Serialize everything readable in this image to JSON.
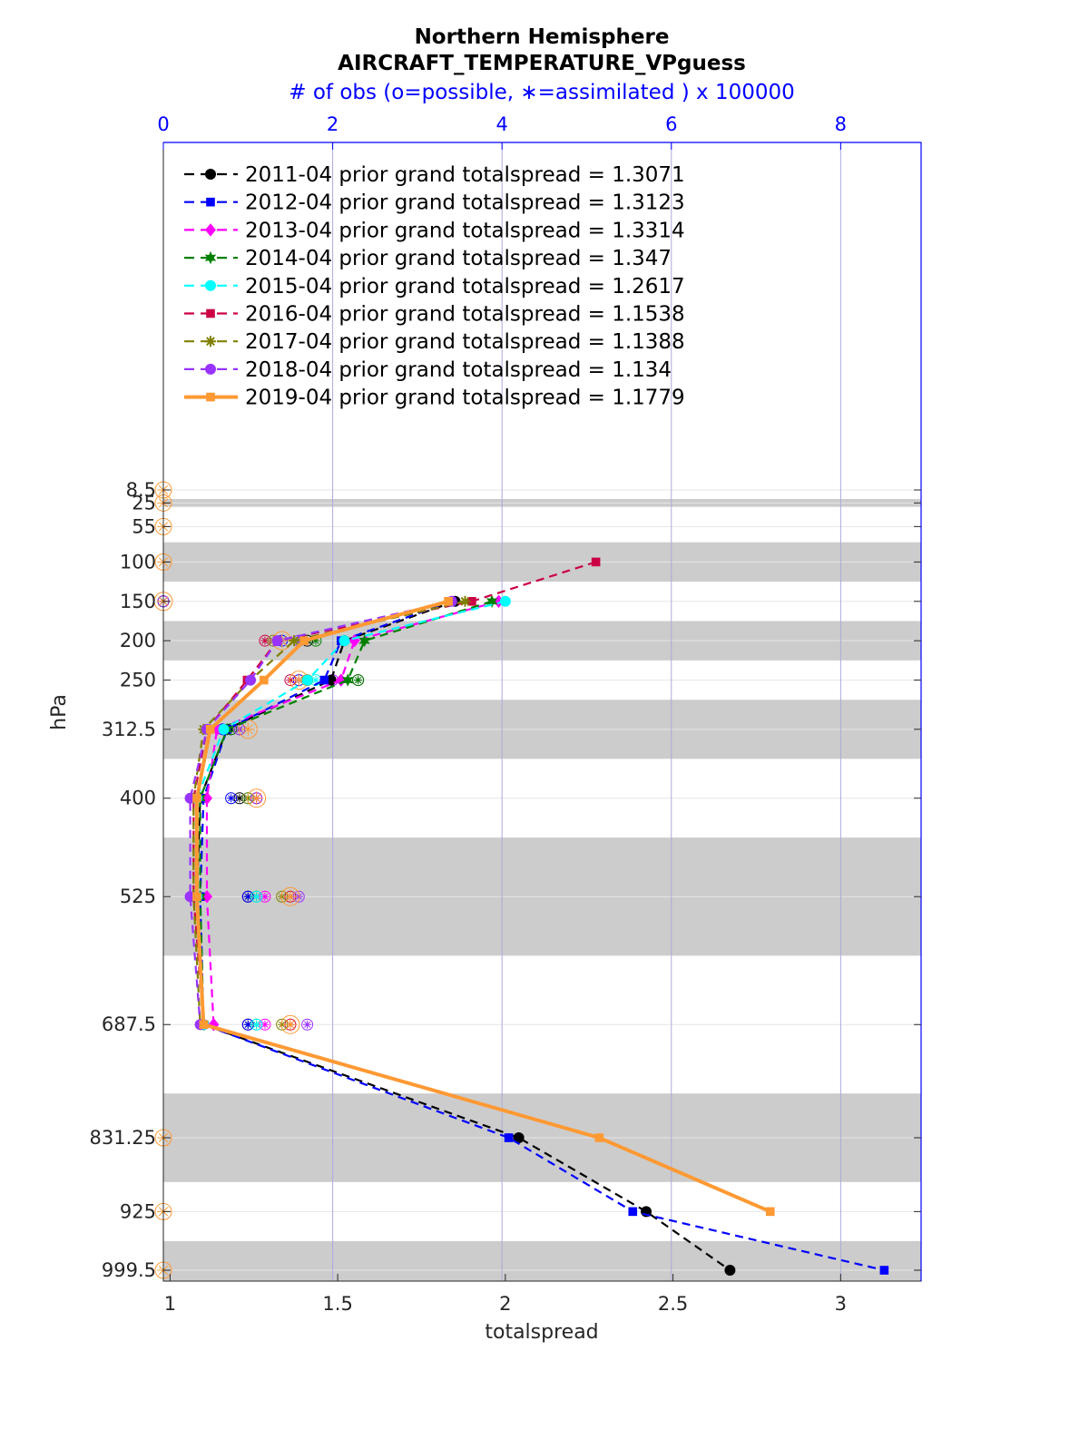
{
  "chart_data": {
    "type": "line",
    "title": "Northern Hemisphere",
    "subtitle": "AIRCRAFT_TEMPERATURE_VPguess",
    "top_axis_label": "# of obs (o=possible, ∗=assimilated ) x 100000",
    "xlabel": "totalspread",
    "ylabel": "hPa",
    "xlim": [
      0.98,
      3.24
    ],
    "xticks": [
      "1",
      "1.5",
      "2",
      "2.5",
      "3"
    ],
    "top_xlim": [
      0,
      8.95
    ],
    "top_xticks": [
      "0",
      "2",
      "4",
      "6",
      "8"
    ],
    "y_levels": [
      8.5,
      25,
      55,
      100,
      150,
      200,
      250,
      312.5,
      400,
      525,
      687.5,
      831.25,
      925,
      999.5
    ],
    "y_tick_labels": [
      "8.5",
      "25",
      "55",
      "100",
      "150",
      "200",
      "250",
      "312.5",
      "400",
      "525",
      "687.5",
      "831.25",
      "925",
      "999.5"
    ],
    "y_reversed": true,
    "grid": true,
    "shaded_layers": [
      [
        20,
        30
      ],
      [
        75,
        125
      ],
      [
        175,
        225
      ],
      [
        275,
        350
      ],
      [
        450,
        600
      ],
      [
        775,
        887.5
      ],
      [
        962.5,
        1037.5
      ]
    ],
    "legend_position": "top-left",
    "series": [
      {
        "name": "2011-04 prior grand totalspread = 1.3071",
        "color": "#000000",
        "marker": "circle",
        "style": "dashed",
        "levels": [
          150,
          200,
          250,
          312.5,
          400,
          525,
          687.5,
          831.25,
          925,
          999.5
        ],
        "values": [
          1.85,
          1.52,
          1.48,
          1.17,
          1.09,
          1.08,
          1.1,
          2.04,
          2.42,
          2.67
        ]
      },
      {
        "name": "2012-04 prior grand totalspread = 1.3123",
        "color": "#0000ff",
        "marker": "square",
        "style": "dashed",
        "levels": [
          150,
          200,
          250,
          312.5,
          400,
          525,
          687.5,
          831.25,
          925,
          999.5
        ],
        "values": [
          1.84,
          1.51,
          1.46,
          1.17,
          1.1,
          1.09,
          1.1,
          2.01,
          2.38,
          3.13
        ]
      },
      {
        "name": "2013-04 prior grand totalspread = 1.3314",
        "color": "#ff00ff",
        "marker": "diamond",
        "style": "dashed",
        "levels": [
          150,
          200,
          250,
          312.5,
          400,
          525,
          687.5
        ],
        "values": [
          1.98,
          1.55,
          1.51,
          1.14,
          1.11,
          1.11,
          1.13
        ]
      },
      {
        "name": "2014-04 prior grand totalspread = 1.347",
        "color": "#008000",
        "marker": "hexagram",
        "style": "dashed",
        "levels": [
          150,
          200,
          250,
          312.5,
          400,
          525,
          687.5
        ],
        "values": [
          1.96,
          1.58,
          1.53,
          1.17,
          1.09,
          1.09,
          1.1
        ]
      },
      {
        "name": "2015-04 prior grand totalspread = 1.2617",
        "color": "#00ffff",
        "marker": "circle",
        "style": "dashed",
        "levels": [
          150,
          200,
          250,
          312.5,
          400,
          525,
          687.5
        ],
        "values": [
          2.0,
          1.52,
          1.41,
          1.16,
          1.08,
          1.08,
          1.1
        ]
      },
      {
        "name": "2016-04 prior grand totalspread = 1.1538",
        "color": "#cc0044",
        "marker": "square",
        "style": "dashed",
        "levels": [
          100,
          150,
          200,
          250,
          312.5,
          400,
          525,
          687.5
        ],
        "values": [
          2.27,
          1.9,
          1.32,
          1.23,
          1.11,
          1.07,
          1.07,
          1.1
        ]
      },
      {
        "name": "2017-04 prior grand totalspread = 1.1388",
        "color": "#808000",
        "marker": "asterisk",
        "style": "dashed",
        "levels": [
          150,
          200,
          250,
          312.5,
          400,
          525,
          687.5
        ],
        "values": [
          1.88,
          1.37,
          1.24,
          1.1,
          1.07,
          1.07,
          1.09
        ]
      },
      {
        "name": "2018-04 prior grand totalspread = 1.134",
        "color": "#9933ff",
        "marker": "circle",
        "style": "dashed",
        "levels": [
          150,
          200,
          250,
          312.5,
          400,
          525,
          687.5
        ],
        "values": [
          1.84,
          1.32,
          1.24,
          1.11,
          1.06,
          1.06,
          1.09
        ]
      },
      {
        "name": "2019-04 prior grand totalspread = 1.1779",
        "color": "#ff9933",
        "marker": "square",
        "style": "solid",
        "levels": [
          150,
          200,
          250,
          312.5,
          400,
          525,
          687.5,
          831.25,
          925
        ],
        "values": [
          1.83,
          1.4,
          1.28,
          1.12,
          1.08,
          1.08,
          1.1,
          2.28,
          2.79
        ]
      }
    ],
    "obs_counts": {
      "levels": [
        150,
        200,
        250,
        312.5,
        400,
        525,
        687.5
      ],
      "series": [
        {
          "color": "#000000",
          "values": [
            0,
            1.7,
            2.3,
            0.8,
            0.9,
            1.0,
            1.0
          ]
        },
        {
          "color": "#0000ff",
          "values": [
            0,
            1.4,
            1.6,
            0.7,
            0.8,
            1.0,
            1.0
          ]
        },
        {
          "color": "#ff00ff",
          "values": [
            0,
            1.6,
            2.0,
            0.9,
            1.1,
            1.2,
            1.2
          ]
        },
        {
          "color": "#008000",
          "values": [
            0,
            1.8,
            2.3,
            0.8,
            1.0,
            1.1,
            1.1
          ]
        },
        {
          "color": "#00ffff",
          "values": [
            0,
            1.6,
            1.8,
            0.9,
            1.0,
            1.1,
            1.1
          ]
        },
        {
          "color": "#cc0044",
          "values": [
            0,
            1.2,
            1.5,
            0.9,
            1.1,
            1.5,
            1.5
          ]
        },
        {
          "color": "#808000",
          "values": [
            0,
            1.3,
            1.7,
            0.9,
            1.0,
            1.4,
            1.4
          ]
        },
        {
          "color": "#9933ff",
          "values": [
            0,
            1.6,
            2.0,
            0.9,
            1.1,
            1.6,
            1.7
          ]
        },
        {
          "color": "#ff9933",
          "values": [
            0,
            1.4,
            1.6,
            1.0,
            1.1,
            1.5,
            1.5
          ]
        }
      ],
      "possible_only_levels": [
        8.5,
        25,
        55,
        100,
        831.25,
        925,
        999.5
      ]
    }
  }
}
